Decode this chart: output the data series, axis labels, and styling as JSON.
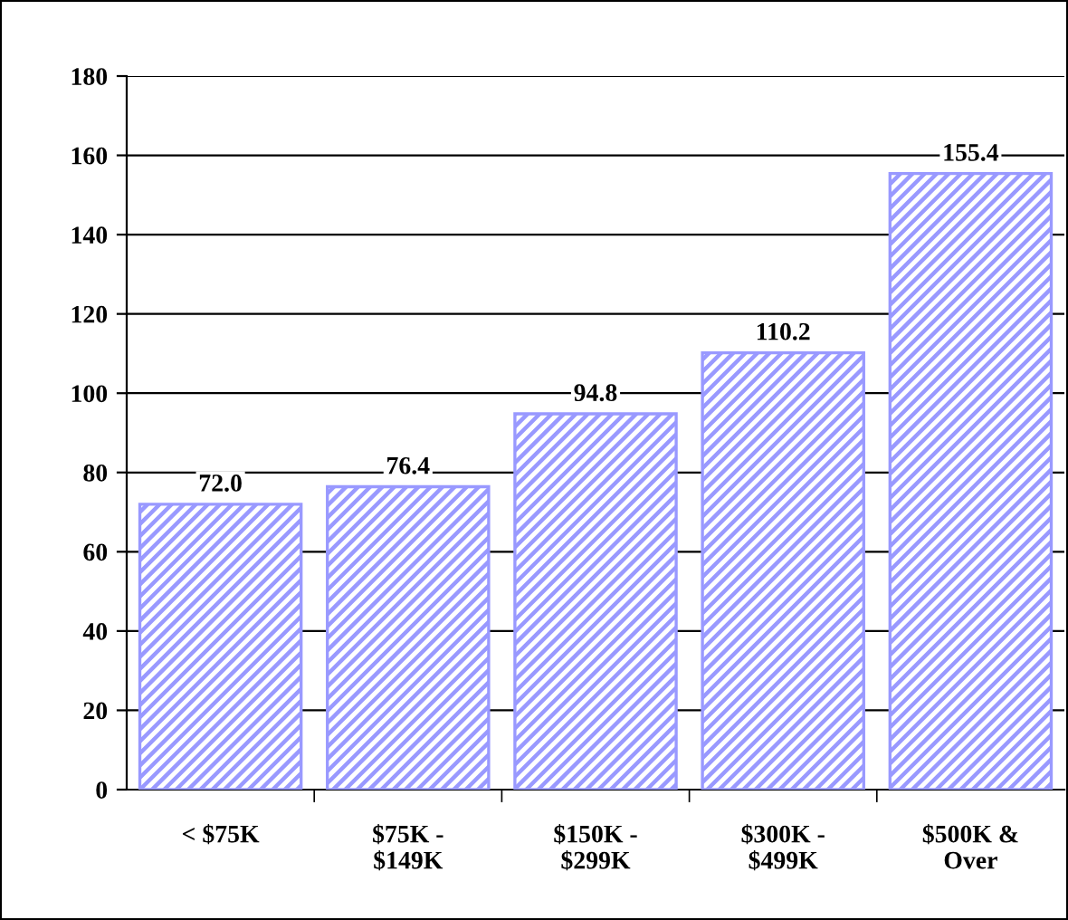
{
  "chart_data": {
    "type": "bar",
    "categories": [
      "< $75K",
      "$75K -\n$149K",
      "$150K -\n$299K",
      "$300K -\n$499K",
      "$500K &\nOver"
    ],
    "values": [
      72.0,
      76.4,
      94.8,
      110.2,
      155.4
    ],
    "value_labels": [
      "72.0",
      "76.4",
      "94.8",
      "110.2",
      "155.4"
    ],
    "color": "#9999ff",
    "ylim": [
      0,
      180
    ],
    "yticks": [
      0,
      20,
      40,
      60,
      80,
      100,
      120,
      140,
      160,
      180
    ],
    "grid": "y"
  }
}
